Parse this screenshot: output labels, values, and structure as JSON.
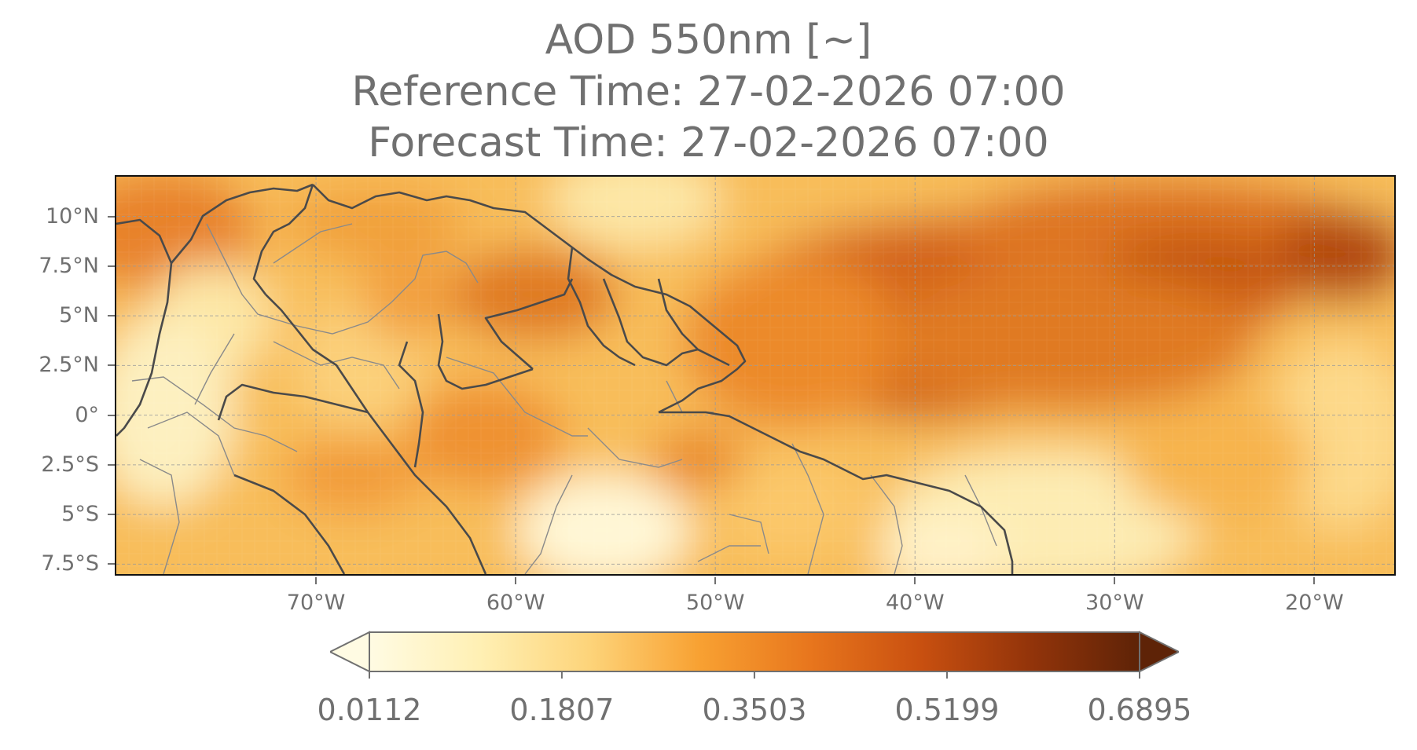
{
  "title": {
    "line1": "AOD 550nm [~]",
    "line2": "Reference Time: 27-02-2026 07:00",
    "line3": "Forecast Time: 27-02-2026 07:00"
  },
  "map": {
    "extent_lon": [
      -80,
      -16
    ],
    "extent_lat": [
      -8,
      12
    ],
    "gridlines": true,
    "lat_ticks": [
      {
        "value": 10,
        "label": "10°N"
      },
      {
        "value": 7.5,
        "label": "7.5°N"
      },
      {
        "value": 5,
        "label": "5°N"
      },
      {
        "value": 2.5,
        "label": "2.5°N"
      },
      {
        "value": 0,
        "label": "0°"
      },
      {
        "value": -2.5,
        "label": "2.5°S"
      },
      {
        "value": -5,
        "label": "5°S"
      },
      {
        "value": -7.5,
        "label": "7.5°S"
      }
    ],
    "lon_ticks": [
      {
        "value": -70,
        "label": "70°W"
      },
      {
        "value": -60,
        "label": "60°W"
      },
      {
        "value": -50,
        "label": "50°W"
      },
      {
        "value": -40,
        "label": "40°W"
      },
      {
        "value": -30,
        "label": "30°W"
      },
      {
        "value": -20,
        "label": "20°W"
      }
    ]
  },
  "colorbar": {
    "colormap": "YlOrBr",
    "min": 0.0112,
    "max": 0.6895,
    "extend": "both",
    "ticks": [
      {
        "value": 0.0112,
        "label": "0.0112"
      },
      {
        "value": 0.1807,
        "label": "0.1807"
      },
      {
        "value": 0.3503,
        "label": "0.3503"
      },
      {
        "value": 0.5199,
        "label": "0.5199"
      },
      {
        "value": 0.6895,
        "label": "0.6895"
      }
    ],
    "stops": [
      "#fffbe3",
      "#fff0b4",
      "#fdd47a",
      "#f8a132",
      "#e8761d",
      "#c95010",
      "#93340a",
      "#5e2307"
    ]
  },
  "colors": {
    "coastline": "#4a4a4a",
    "borders": "#8a8a8a",
    "text": "#707070"
  }
}
